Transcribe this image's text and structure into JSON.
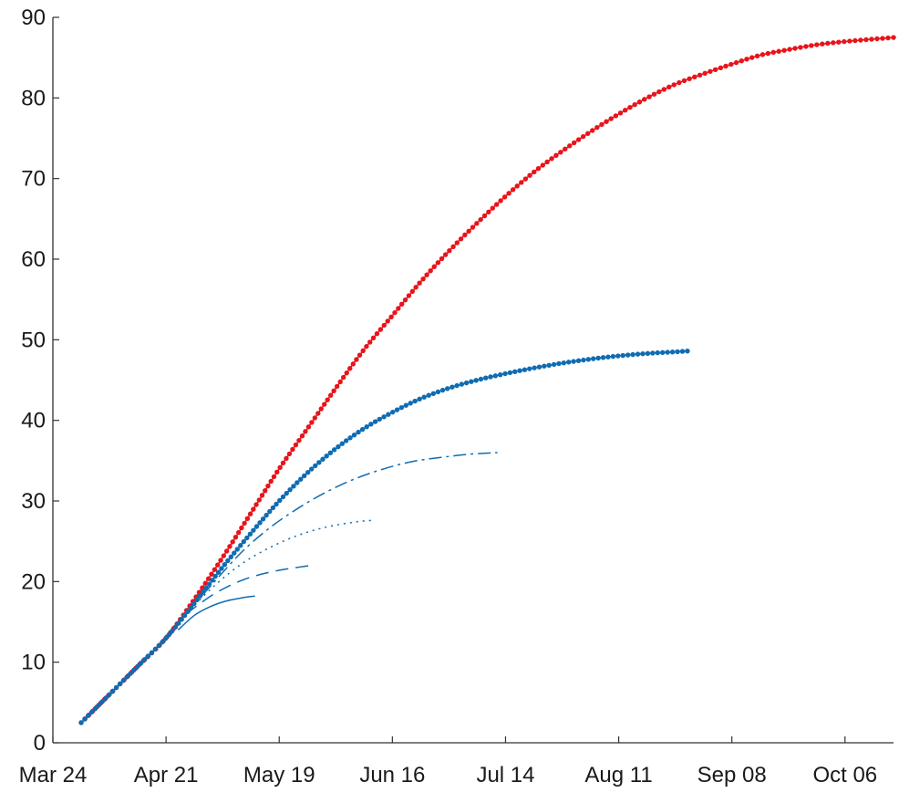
{
  "chart_data": {
    "type": "line",
    "title": "",
    "xlabel": "",
    "ylabel": "",
    "xlim": [
      "2020-03-24",
      "2020-10-18"
    ],
    "ylim": [
      0,
      90
    ],
    "yticks": [
      0,
      10,
      20,
      30,
      40,
      50,
      60,
      70,
      80,
      90
    ],
    "xticks": [
      "2020-03-24",
      "2020-04-21",
      "2020-05-19",
      "2020-06-16",
      "2020-07-14",
      "2020-08-11",
      "2020-09-08",
      "2020-10-06"
    ],
    "xtick_labels": [
      "Mar 24",
      "Apr 21",
      "May 19",
      "Jun 16",
      "Jul 14",
      "Aug 11",
      "Sep 08",
      "Oct 06"
    ],
    "grid": false,
    "legend": "none",
    "series": [
      {
        "style": "dotted-markers",
        "color": "#e8141b",
        "x": [
          "2020-03-31",
          "2020-04-07",
          "2020-04-14",
          "2020-04-21",
          "2020-04-28",
          "2020-05-05",
          "2020-05-12",
          "2020-05-19",
          "2020-05-26",
          "2020-06-02",
          "2020-06-09",
          "2020-06-16",
          "2020-06-23",
          "2020-06-30",
          "2020-07-07",
          "2020-07-14",
          "2020-07-21",
          "2020-07-28",
          "2020-08-04",
          "2020-08-11",
          "2020-08-18",
          "2020-08-25",
          "2020-09-01",
          "2020-09-08",
          "2020-09-15",
          "2020-09-22",
          "2020-09-29",
          "2020-10-06",
          "2020-10-13",
          "2020-10-18"
        ],
        "y": [
          2.5,
          6.0,
          9.5,
          13.0,
          17.8,
          23.0,
          28.5,
          34.0,
          39.0,
          44.0,
          48.8,
          53.0,
          57.2,
          61.0,
          64.5,
          67.8,
          70.8,
          73.4,
          75.8,
          78.0,
          80.0,
          81.7,
          83.0,
          84.2,
          85.3,
          86.0,
          86.6,
          87.0,
          87.3,
          87.5
        ]
      },
      {
        "style": "dotted-markers",
        "color": "#0f6cb2",
        "x": [
          "2020-03-31",
          "2020-04-07",
          "2020-04-14",
          "2020-04-21",
          "2020-04-28",
          "2020-05-05",
          "2020-05-12",
          "2020-05-19",
          "2020-05-26",
          "2020-06-02",
          "2020-06-09",
          "2020-06-16",
          "2020-06-23",
          "2020-06-30",
          "2020-07-07",
          "2020-07-14",
          "2020-07-21",
          "2020-07-28",
          "2020-08-04",
          "2020-08-11",
          "2020-08-18",
          "2020-08-25",
          "2020-08-28"
        ],
        "y": [
          2.5,
          6.0,
          9.5,
          13.0,
          17.3,
          21.8,
          26.0,
          30.0,
          33.5,
          36.5,
          39.0,
          41.0,
          42.7,
          44.0,
          45.0,
          45.8,
          46.5,
          47.1,
          47.6,
          48.0,
          48.3,
          48.5,
          48.6
        ]
      },
      {
        "style": "dash-dot",
        "color": "#0f6cb2",
        "x": [
          "2020-04-26",
          "2020-05-03",
          "2020-05-10",
          "2020-05-17",
          "2020-05-24",
          "2020-05-31",
          "2020-06-07",
          "2020-06-14",
          "2020-06-21",
          "2020-06-28",
          "2020-07-05",
          "2020-07-12"
        ],
        "y": [
          16.0,
          20.0,
          23.8,
          26.8,
          29.2,
          31.2,
          32.8,
          34.0,
          34.9,
          35.4,
          35.8,
          36.0
        ]
      },
      {
        "style": "dotted",
        "color": "#0f6cb2",
        "x": [
          "2020-04-26",
          "2020-05-03",
          "2020-05-10",
          "2020-05-17",
          "2020-05-24",
          "2020-05-31",
          "2020-06-07",
          "2020-06-11"
        ],
        "y": [
          16.0,
          19.5,
          22.3,
          24.3,
          25.8,
          26.8,
          27.4,
          27.6
        ]
      },
      {
        "style": "dashed",
        "color": "#0f6cb2",
        "x": [
          "2020-04-26",
          "2020-05-03",
          "2020-05-10",
          "2020-05-17",
          "2020-05-24",
          "2020-05-27"
        ],
        "y": [
          16.0,
          18.5,
          20.2,
          21.2,
          21.8,
          22.0
        ]
      },
      {
        "style": "solid",
        "color": "#0f6cb2",
        "x": [
          "2020-04-24",
          "2020-04-28",
          "2020-05-02",
          "2020-05-06",
          "2020-05-10",
          "2020-05-13"
        ],
        "y": [
          14.0,
          15.8,
          16.9,
          17.6,
          18.0,
          18.2
        ]
      }
    ]
  }
}
